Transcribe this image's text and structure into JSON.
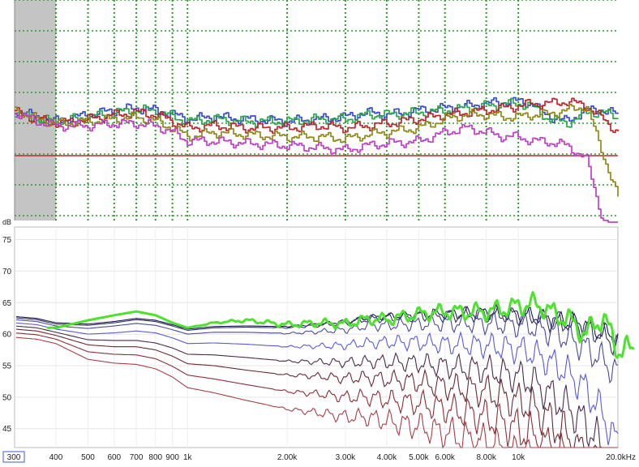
{
  "chart_data": [
    {
      "type": "line",
      "panel": "upper",
      "title": "",
      "x_scale": "log",
      "xlim": [
        300,
        20000
      ],
      "grid": true,
      "grid_style": "dotted green",
      "reference_line_color": "#c0262d",
      "shaded_band_hz": [
        300,
        400
      ],
      "series": [
        {
          "color": "#3a4bd6",
          "x": [
            300,
            350,
            400,
            500,
            600,
            700,
            800,
            900,
            1000,
            1200,
            1500,
            2000,
            2500,
            3000,
            3500,
            4000,
            5000,
            6000,
            7000,
            8000,
            9000,
            10000,
            11000,
            12000,
            14000,
            16000,
            18000,
            20000
          ],
          "y": [
            50,
            47,
            45,
            48,
            50,
            51,
            50,
            48,
            46,
            47,
            46,
            45,
            46,
            47,
            49,
            48,
            50,
            51,
            52,
            53,
            54,
            54,
            53,
            48,
            45,
            50,
            50,
            48
          ]
        },
        {
          "color": "#2aa84a",
          "x": [
            300,
            350,
            400,
            500,
            600,
            700,
            800,
            900,
            1000,
            1200,
            1500,
            2000,
            2500,
            3000,
            3500,
            4000,
            5000,
            6000,
            7000,
            8000,
            9000,
            10000,
            11000,
            12000,
            14000,
            16000,
            18000,
            20000
          ],
          "y": [
            49,
            46,
            45,
            47,
            49,
            50,
            50,
            47,
            45,
            46,
            45,
            45,
            46,
            46,
            48,
            48,
            49,
            50,
            51,
            52,
            53,
            53,
            52,
            47,
            44,
            49,
            49,
            47
          ]
        },
        {
          "color": "#c0262d",
          "x": [
            300,
            350,
            400,
            500,
            600,
            700,
            800,
            900,
            1000,
            1200,
            1500,
            2000,
            2500,
            3000,
            3500,
            4000,
            5000,
            6000,
            7000,
            8000,
            9000,
            10000,
            11000,
            12000,
            14000,
            16000,
            18000,
            20000
          ],
          "y": [
            49,
            46,
            44,
            46,
            48,
            49,
            48,
            45,
            42,
            43,
            42,
            42,
            43,
            42,
            43,
            44,
            46,
            48,
            49,
            50,
            51,
            52,
            53,
            53,
            54,
            52,
            46,
            40
          ]
        },
        {
          "color": "#8f8a1a",
          "x": [
            300,
            350,
            400,
            500,
            600,
            700,
            800,
            900,
            1000,
            1200,
            1500,
            2000,
            2500,
            3000,
            3500,
            4000,
            5000,
            6000,
            7000,
            8000,
            9000,
            10000,
            11000,
            12000,
            14000,
            16000,
            18000,
            20000
          ],
          "y": [
            50,
            46,
            44,
            45,
            46,
            47,
            45,
            42,
            38,
            40,
            39,
            38,
            38,
            37,
            39,
            40,
            42,
            46,
            48,
            48,
            47,
            47,
            48,
            48,
            50,
            52,
            30,
            10
          ]
        },
        {
          "color": "#c040c8",
          "x": [
            300,
            350,
            400,
            500,
            600,
            700,
            800,
            900,
            1000,
            1200,
            1500,
            2000,
            2500,
            3000,
            3500,
            4000,
            5000,
            6000,
            7000,
            8000,
            9000,
            10000,
            11000,
            12000,
            14000,
            16000,
            18000,
            20000
          ],
          "y": [
            49,
            45,
            43,
            43,
            44,
            44,
            43,
            40,
            36,
            36,
            35,
            34,
            33,
            32,
            34,
            35,
            36,
            40,
            42,
            40,
            38,
            38,
            36,
            36,
            34,
            28,
            0,
            -5
          ]
        }
      ]
    },
    {
      "type": "line",
      "panel": "lower",
      "title": "",
      "ylabel": "dB",
      "x_scale": "log",
      "xlim": [
        300,
        20000
      ],
      "ylim": [
        42,
        77
      ],
      "grid": true,
      "x_ticks": [
        {
          "v": 300,
          "label": "300"
        },
        {
          "v": 400,
          "label": "400"
        },
        {
          "v": 500,
          "label": "500"
        },
        {
          "v": 600,
          "label": "600"
        },
        {
          "v": 700,
          "label": "700"
        },
        {
          "v": 800,
          "label": "800"
        },
        {
          "v": 900,
          "label": "900"
        },
        {
          "v": 1000,
          "label": "1k"
        },
        {
          "v": 2000,
          "label": "2.00k"
        },
        {
          "v": 3000,
          "label": "3.00k"
        },
        {
          "v": 4000,
          "label": "4.00k"
        },
        {
          "v": 5000,
          "label": "5.00k"
        },
        {
          "v": 6000,
          "label": "6.00k"
        },
        {
          "v": 8000,
          "label": "8.00k"
        },
        {
          "v": 10000,
          "label": "10k"
        },
        {
          "v": 20000,
          "label": "20.0kHz"
        }
      ],
      "y_ticks": [
        {
          "v": 45,
          "label": "45"
        },
        {
          "v": 50,
          "label": "50"
        },
        {
          "v": 55,
          "label": "55"
        },
        {
          "v": 60,
          "label": "60"
        },
        {
          "v": 65,
          "label": "65"
        },
        {
          "v": 70,
          "label": "70"
        },
        {
          "v": 75,
          "label": "75"
        }
      ],
      "x_shape": [
        300,
        350,
        400,
        500,
        600,
        700,
        800,
        900,
        1000,
        1200,
        1500,
        2000,
        2500,
        3000,
        3500,
        4000,
        5000,
        6000,
        7000,
        8000,
        9000,
        10000,
        11000,
        12000,
        14000,
        16000,
        18000,
        20000
      ],
      "base_shape": [
        0,
        -0.3,
        -1,
        -1.2,
        -0.8,
        -0.3,
        -0.6,
        -1.3,
        -2,
        -1.6,
        -1.5,
        -1.6,
        -1.2,
        -0.8,
        -0.2,
        0,
        0.3,
        0.4,
        0.5,
        0.6,
        0.5,
        0.4,
        0.2,
        -0.2,
        -0.8,
        -1.5,
        -2.5,
        -3.5
      ],
      "off_axis_angles": [
        {
          "color": "#1a1a5a",
          "start": 62.8,
          "tilt": [
            0,
            0,
            0,
            0,
            0,
            0,
            0,
            0,
            0,
            0,
            0,
            0,
            0,
            0,
            0,
            0,
            0,
            0,
            0,
            0,
            0,
            0,
            0,
            0,
            0,
            0,
            0,
            0
          ]
        },
        {
          "color": "#34345e",
          "start": 62.6,
          "tilt": [
            0,
            0,
            0,
            0,
            0,
            0,
            0,
            0,
            0,
            0,
            0,
            0,
            0,
            0,
            0,
            0,
            0,
            0,
            0,
            0,
            0,
            0,
            0,
            0,
            0,
            0,
            -0.3,
            -0.8
          ]
        },
        {
          "color": "#4a4a9a",
          "start": 62.3,
          "tilt": [
            0,
            0,
            0,
            -0.2,
            -0.2,
            -0.3,
            -0.3,
            -0.3,
            -0.3,
            -0.4,
            -0.5,
            -0.6,
            -0.7,
            -0.8,
            -0.8,
            -0.9,
            -1,
            -1,
            -1.1,
            -1.2,
            -1.2,
            -1.3,
            -1.4,
            -1.5,
            -2,
            -3,
            -4,
            -5
          ]
        },
        {
          "color": "#5a5adc",
          "start": 61.8,
          "tilt": [
            0,
            0,
            0,
            -0.6,
            -0.8,
            -1,
            -1,
            -1.1,
            -1.3,
            -1.6,
            -1.9,
            -2.2,
            -2.5,
            -2.8,
            -3,
            -3.1,
            -3.4,
            -3.8,
            -4,
            -4.2,
            -4.4,
            -4.6,
            -5,
            -5.5,
            -7,
            -9,
            -12,
            -16
          ]
        },
        {
          "color": "#4a2c4a",
          "start": 61.3,
          "tilt": [
            0,
            0,
            0,
            -1,
            -1.5,
            -2,
            -2.1,
            -2.2,
            -2.5,
            -3,
            -3.5,
            -4,
            -4.5,
            -5,
            -5.5,
            -5.7,
            -6.2,
            -6.8,
            -7.2,
            -7.5,
            -8,
            -8.4,
            -9,
            -10,
            -12,
            -14,
            -17,
            -21
          ]
        },
        {
          "color": "#6a2a34",
          "start": 60.8,
          "tilt": [
            0,
            0,
            0,
            -1.3,
            -2,
            -2.5,
            -2.7,
            -3,
            -3.5,
            -4.2,
            -5,
            -5.7,
            -6.3,
            -7,
            -7.5,
            -8,
            -8.7,
            -9.5,
            -10,
            -10.5,
            -11.2,
            -11.8,
            -12.5,
            -13.5,
            -16,
            -19,
            -22,
            -26
          ]
        },
        {
          "color": "#8a3038",
          "start": 60.2,
          "tilt": [
            0,
            0,
            0,
            -1.8,
            -2.6,
            -3.2,
            -3.5,
            -4,
            -4.7,
            -5.7,
            -6.7,
            -7.7,
            -8.5,
            -9.4,
            -10,
            -10.6,
            -11.5,
            -12.4,
            -13.2,
            -14,
            -14.8,
            -15.6,
            -16.4,
            -17.5,
            -20,
            -23,
            -27,
            -32
          ]
        },
        {
          "color": "#a6404a",
          "start": 59.5,
          "tilt": [
            0,
            0,
            0,
            -2.3,
            -3.3,
            -4,
            -4.4,
            -5,
            -6,
            -7.2,
            -8.5,
            -9.8,
            -10.8,
            -11.8,
            -12.5,
            -13.3,
            -14.5,
            -15.6,
            -16.6,
            -17.5,
            -18.5,
            -19.5,
            -20.5,
            -21.8,
            -24,
            -27,
            -31,
            -36
          ]
        }
      ],
      "listening_window": {
        "color": "#4ee22e",
        "x": [
          400,
          500,
          600,
          700,
          800,
          900,
          1000,
          1200,
          1500,
          2000,
          2500,
          3000,
          3500,
          4000,
          5000,
          6000,
          7000,
          8000,
          9000,
          10000,
          11000,
          12000,
          13000,
          14000,
          16000,
          18000,
          20000
        ],
        "y": [
          61,
          62.2,
          63,
          63.6,
          63,
          61.8,
          61,
          61.8,
          62.2,
          61.5,
          61.8,
          61.6,
          62.4,
          62.3,
          63.2,
          63.6,
          63.5,
          63.6,
          64,
          64.5,
          64.8,
          64.2,
          63,
          62.5,
          60,
          62.8,
          57.5
        ]
      }
    }
  ]
}
